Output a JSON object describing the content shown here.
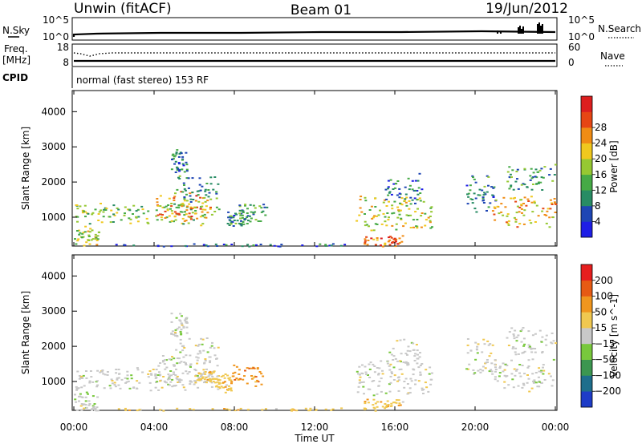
{
  "header": {
    "radar": "Unwin (fitACF)",
    "beam": "Beam 01",
    "date": "19/Jun/2012"
  },
  "sky_panel": {
    "left_label": "N.Sky",
    "right_label": "N.Search",
    "left_ticks": [
      "10^5",
      "10^0"
    ],
    "right_ticks": [
      "10^5",
      "10^0"
    ]
  },
  "freq_panel": {
    "left_label_top": "Freq.",
    "left_label_bottom": "[MHz]",
    "right_label": "Nave",
    "left_ticks": [
      "18",
      "8"
    ],
    "right_ticks": [
      "60",
      "0"
    ]
  },
  "cpid": {
    "label": "CPID",
    "text": "normal (fast stereo) 153 RF"
  },
  "chart_data": [
    {
      "type": "heatmap",
      "quantity": "Power",
      "ylabel": "Slant Range [km]",
      "ylim": [
        180,
        4600
      ],
      "yticks": [
        "1000",
        "2000",
        "3000",
        "4000"
      ],
      "xticks": [
        "00:00",
        "04:00",
        "08:00",
        "12:00",
        "16:00",
        "20:00",
        "00:00"
      ],
      "colorbar": {
        "label": "Power [dB]",
        "range": [
          0,
          32
        ],
        "ticks": [
          "4",
          "8",
          "12",
          "16",
          "20",
          "24",
          "28"
        ],
        "colors": [
          "#1e1ee6",
          "#1e46b4",
          "#288c64",
          "#46aa46",
          "#96c832",
          "#f0c81e",
          "#f08c14",
          "#e64614",
          "#dc1e1e"
        ]
      },
      "regions": [
        {
          "t0": 0.0,
          "t1": 1.2,
          "r0": 200,
          "r1": 700,
          "v": 17
        },
        {
          "t0": 0.0,
          "t1": 7.2,
          "r0": 800,
          "r1": 1400,
          "v": 15
        },
        {
          "t0": 4.0,
          "t1": 6.8,
          "r0": 900,
          "r1": 1700,
          "v": 23
        },
        {
          "t0": 5.0,
          "t1": 7.2,
          "r0": 1500,
          "r1": 2200,
          "v": 10
        },
        {
          "t0": 4.8,
          "t1": 5.6,
          "r0": 2300,
          "r1": 2900,
          "v": 8
        },
        {
          "t0": 7.6,
          "t1": 8.6,
          "r0": 750,
          "r1": 1150,
          "v": 9
        },
        {
          "t0": 8.2,
          "t1": 9.6,
          "r0": 900,
          "r1": 1400,
          "v": 10
        },
        {
          "t0": 14.0,
          "t1": 17.8,
          "r0": 700,
          "r1": 1600,
          "v": 17
        },
        {
          "t0": 14.4,
          "t1": 16.4,
          "r0": 200,
          "r1": 500,
          "v": 26
        },
        {
          "t0": 15.5,
          "t1": 17.3,
          "r0": 1400,
          "r1": 2200,
          "v": 7
        },
        {
          "t0": 19.5,
          "t1": 21.0,
          "r0": 1200,
          "r1": 2200,
          "v": 9
        },
        {
          "t0": 20.8,
          "t1": 24.0,
          "r0": 800,
          "r1": 1600,
          "v": 21
        },
        {
          "t0": 21.5,
          "t1": 24.0,
          "r0": 1800,
          "r1": 2500,
          "v": 11
        },
        {
          "t0": 2.0,
          "t1": 13.5,
          "r0": 190,
          "r1": 260,
          "v": 6
        }
      ]
    },
    {
      "type": "heatmap",
      "quantity": "Velocity",
      "ylabel": "Slant Range [km]",
      "ylim": [
        180,
        4600
      ],
      "yticks": [
        "1000",
        "2000",
        "3000",
        "4000"
      ],
      "xticks": [
        "00:00",
        "04:00",
        "08:00",
        "12:00",
        "16:00",
        "20:00",
        "00:00"
      ],
      "xlabel": "Time UT",
      "colorbar": {
        "label": "Velocity [m s^-1]",
        "ticks": [
          "200",
          "100",
          "50",
          "15",
          "−15",
          "−50",
          "−100",
          "−200"
        ],
        "colors": [
          "#1e3cc8",
          "#1e6e8c",
          "#3c9650",
          "#78c83c",
          "#c8c8c8",
          "#f0c850",
          "#f0961e",
          "#e65a14",
          "#e61e1e"
        ]
      },
      "regions": [
        {
          "t0": 0.0,
          "t1": 1.2,
          "r0": 200,
          "r1": 700,
          "v": 4
        },
        {
          "t0": 0.0,
          "t1": 7.2,
          "r0": 800,
          "r1": 1400,
          "v": 4
        },
        {
          "t0": 4.0,
          "t1": 6.8,
          "r0": 900,
          "r1": 1700,
          "v": 4
        },
        {
          "t0": 5.0,
          "t1": 7.2,
          "r0": 1500,
          "r1": 2200,
          "v": 4
        },
        {
          "t0": 4.8,
          "t1": 5.6,
          "r0": 2300,
          "r1": 2900,
          "v": 4
        },
        {
          "t0": 6.0,
          "t1": 7.0,
          "r0": 1000,
          "r1": 1300,
          "v": 5
        },
        {
          "t0": 7.0,
          "t1": 7.8,
          "r0": 750,
          "r1": 1200,
          "v": 5
        },
        {
          "t0": 7.8,
          "t1": 9.4,
          "r0": 900,
          "r1": 1500,
          "v": 6
        },
        {
          "t0": 14.0,
          "t1": 17.8,
          "r0": 700,
          "r1": 1600,
          "v": 4
        },
        {
          "t0": 14.4,
          "t1": 16.4,
          "r0": 200,
          "r1": 500,
          "v": 5
        },
        {
          "t0": 15.5,
          "t1": 17.3,
          "r0": 1400,
          "r1": 2200,
          "v": 4
        },
        {
          "t0": 19.5,
          "t1": 21.0,
          "r0": 1200,
          "r1": 2200,
          "v": 4
        },
        {
          "t0": 20.8,
          "t1": 24.0,
          "r0": 800,
          "r1": 1600,
          "v": 4
        },
        {
          "t0": 21.5,
          "t1": 24.0,
          "r0": 1800,
          "r1": 2500,
          "v": 4
        },
        {
          "t0": 2.0,
          "t1": 13.5,
          "r0": 190,
          "r1": 260,
          "v": 5
        }
      ]
    }
  ]
}
